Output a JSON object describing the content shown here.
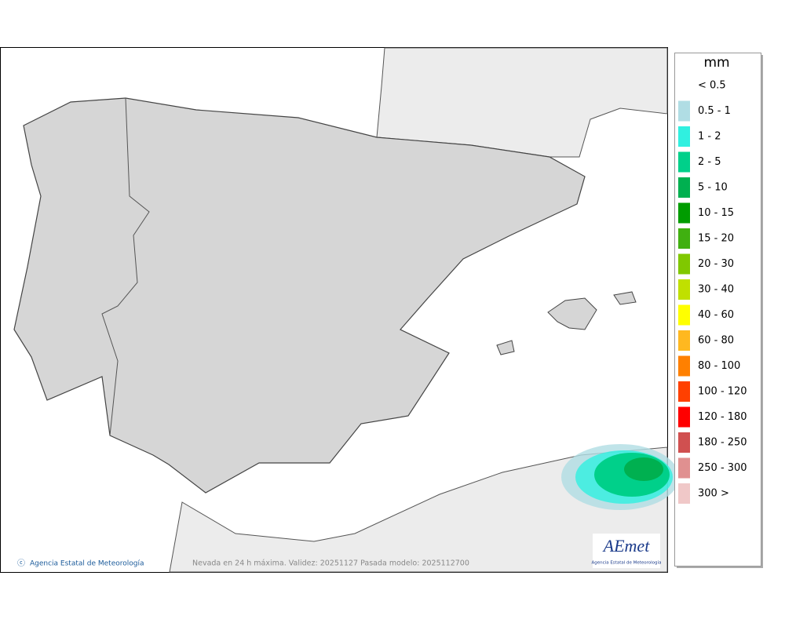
{
  "legend": {
    "unit": "mm",
    "items": [
      {
        "label": "< 0.5"
      },
      {
        "label": "0.5 - 1",
        "color": "#b0dde4"
      },
      {
        "label": "1 - 2",
        "color": "#30f0e0"
      },
      {
        "label": "2 - 5",
        "color": "#00d08a"
      },
      {
        "label": "5 - 10",
        "color": "#00b050"
      },
      {
        "label": "10 - 15",
        "color": "#009c00"
      },
      {
        "label": "15 - 20",
        "color": "#40b010"
      },
      {
        "label": "20 - 30",
        "color": "#80c800"
      },
      {
        "label": "30 - 40",
        "color": "#c0e000"
      },
      {
        "label": "40 - 60",
        "color": "#ffff00"
      },
      {
        "label": "60 - 80",
        "color": "#ffb820"
      },
      {
        "label": "80 - 100",
        "color": "#ff8000"
      },
      {
        "label": "100 - 120",
        "color": "#ff4000"
      },
      {
        "label": "120 - 180",
        "color": "#ff0000"
      },
      {
        "label": "180 - 250",
        "color": "#d05050"
      },
      {
        "label": "250 - 300",
        "color": "#e09090"
      },
      {
        "label": "300 >",
        "color": "#f0c8c8"
      }
    ]
  },
  "footer": {
    "credit": "Agencia Estatal de Meteorología",
    "caption": "Nevada en 24 h máxima. Validez: 20251127 Pasada modelo: 2025112700"
  },
  "logo": {
    "name": "AEmet",
    "subtitle": "Agencia Estatal de Meteorología"
  }
}
